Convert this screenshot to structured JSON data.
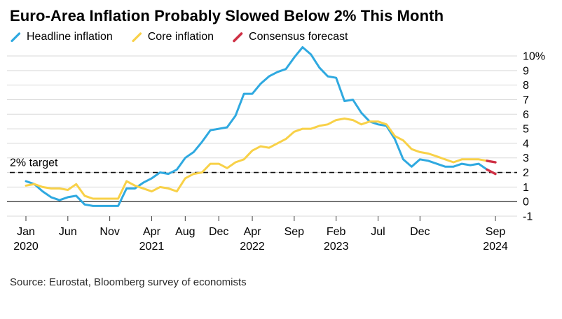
{
  "title": "Euro-Area Inflation Probably Slowed Below 2% This Month",
  "source": "Source: Eurostat, Bloomberg survey of economists",
  "legend": [
    {
      "label": "Headline inflation",
      "color": "#2FA9E0"
    },
    {
      "label": "Core inflation",
      "color": "#F8D148"
    },
    {
      "label": "Consensus forecast",
      "color": "#CE2F44"
    }
  ],
  "chart_data": {
    "type": "line",
    "title": "Euro-Area Inflation Probably Slowed Below 2% This Month",
    "ylabel": "",
    "xlabel": "",
    "ylim": [
      -1,
      10
    ],
    "grid": true,
    "legend_position": "top",
    "unit": "% year-over-year",
    "target_line": {
      "value": 2,
      "label": "2% target"
    },
    "yticks": [
      -1,
      0,
      1,
      2,
      3,
      4,
      5,
      6,
      7,
      8,
      9,
      10
    ],
    "ytick_labels": [
      "-1",
      "0",
      "1",
      "2",
      "3",
      "4",
      "5",
      "6",
      "7",
      "8",
      "9",
      "10%"
    ],
    "x": [
      "2020-01",
      "2020-02",
      "2020-03",
      "2020-04",
      "2020-05",
      "2020-06",
      "2020-07",
      "2020-08",
      "2020-09",
      "2020-10",
      "2020-11",
      "2020-12",
      "2021-01",
      "2021-02",
      "2021-03",
      "2021-04",
      "2021-05",
      "2021-06",
      "2021-07",
      "2021-08",
      "2021-09",
      "2021-10",
      "2021-11",
      "2021-12",
      "2022-01",
      "2022-02",
      "2022-03",
      "2022-04",
      "2022-05",
      "2022-06",
      "2022-07",
      "2022-08",
      "2022-09",
      "2022-10",
      "2022-11",
      "2022-12",
      "2023-01",
      "2023-02",
      "2023-03",
      "2023-04",
      "2023-05",
      "2023-06",
      "2023-07",
      "2023-08",
      "2023-09",
      "2023-10",
      "2023-11",
      "2023-12",
      "2024-01",
      "2024-02",
      "2024-03",
      "2024-04",
      "2024-05",
      "2024-06",
      "2024-07",
      "2024-08",
      "2024-09"
    ],
    "xticks": [
      {
        "i": 0,
        "m": "Jan",
        "y": "2020"
      },
      {
        "i": 5,
        "m": "Jun"
      },
      {
        "i": 10,
        "m": "Nov"
      },
      {
        "i": 15,
        "m": "Apr",
        "y": "2021"
      },
      {
        "i": 19,
        "m": "Aug"
      },
      {
        "i": 23,
        "m": "Dec"
      },
      {
        "i": 27,
        "m": "Apr",
        "y": "2022"
      },
      {
        "i": 32,
        "m": "Sep"
      },
      {
        "i": 37,
        "m": "Feb",
        "y": "2023"
      },
      {
        "i": 42,
        "m": "Jul"
      },
      {
        "i": 47,
        "m": "Dec"
      },
      {
        "i": 56,
        "m": "Sep",
        "y": "2024"
      }
    ],
    "series": [
      {
        "id": "headline",
        "name": "Headline inflation",
        "color": "#2FA9E0",
        "start_index": 0,
        "width": 3,
        "values": [
          1.4,
          1.2,
          0.7,
          0.3,
          0.1,
          0.3,
          0.4,
          -0.2,
          -0.3,
          -0.3,
          -0.3,
          -0.3,
          0.9,
          0.9,
          1.3,
          1.6,
          2.0,
          1.9,
          2.2,
          3.0,
          3.4,
          4.1,
          4.9,
          5.0,
          5.1,
          5.9,
          7.4,
          7.4,
          8.1,
          8.6,
          8.9,
          9.1,
          9.9,
          10.6,
          10.1,
          9.2,
          8.6,
          8.5,
          6.9,
          7.0,
          6.1,
          5.5,
          5.3,
          5.2,
          4.3,
          2.9,
          2.4,
          2.9,
          2.8,
          2.6,
          2.4,
          2.4,
          2.6,
          2.5,
          2.6,
          2.2
        ]
      },
      {
        "id": "core",
        "name": "Core inflation",
        "color": "#F8D148",
        "start_index": 0,
        "width": 3,
        "values": [
          1.1,
          1.2,
          1.0,
          0.9,
          0.9,
          0.8,
          1.2,
          0.4,
          0.2,
          0.2,
          0.2,
          0.2,
          1.4,
          1.1,
          0.9,
          0.7,
          1.0,
          0.9,
          0.7,
          1.6,
          1.9,
          2.0,
          2.6,
          2.6,
          2.3,
          2.7,
          2.9,
          3.5,
          3.8,
          3.7,
          4.0,
          4.3,
          4.8,
          5.0,
          5.0,
          5.2,
          5.3,
          5.6,
          5.7,
          5.6,
          5.3,
          5.5,
          5.5,
          5.3,
          4.5,
          4.2,
          3.6,
          3.4,
          3.3,
          3.1,
          2.9,
          2.7,
          2.9,
          2.9,
          2.9,
          2.8
        ]
      },
      {
        "id": "forecast-headline",
        "name": "Consensus forecast (headline)",
        "color": "#CE2F44",
        "start_index": 55,
        "width": 3.4,
        "values": [
          2.2,
          1.9
        ]
      },
      {
        "id": "forecast-core",
        "name": "Consensus forecast (core)",
        "color": "#CE2F44",
        "start_index": 55,
        "width": 3.4,
        "values": [
          2.8,
          2.7
        ]
      }
    ],
    "colors": {
      "grid": "#d9d9d9",
      "zero_line": "#3c3c3c",
      "tick": "#3c3c3c",
      "target": "#111111",
      "axis_text": "#000000"
    }
  }
}
